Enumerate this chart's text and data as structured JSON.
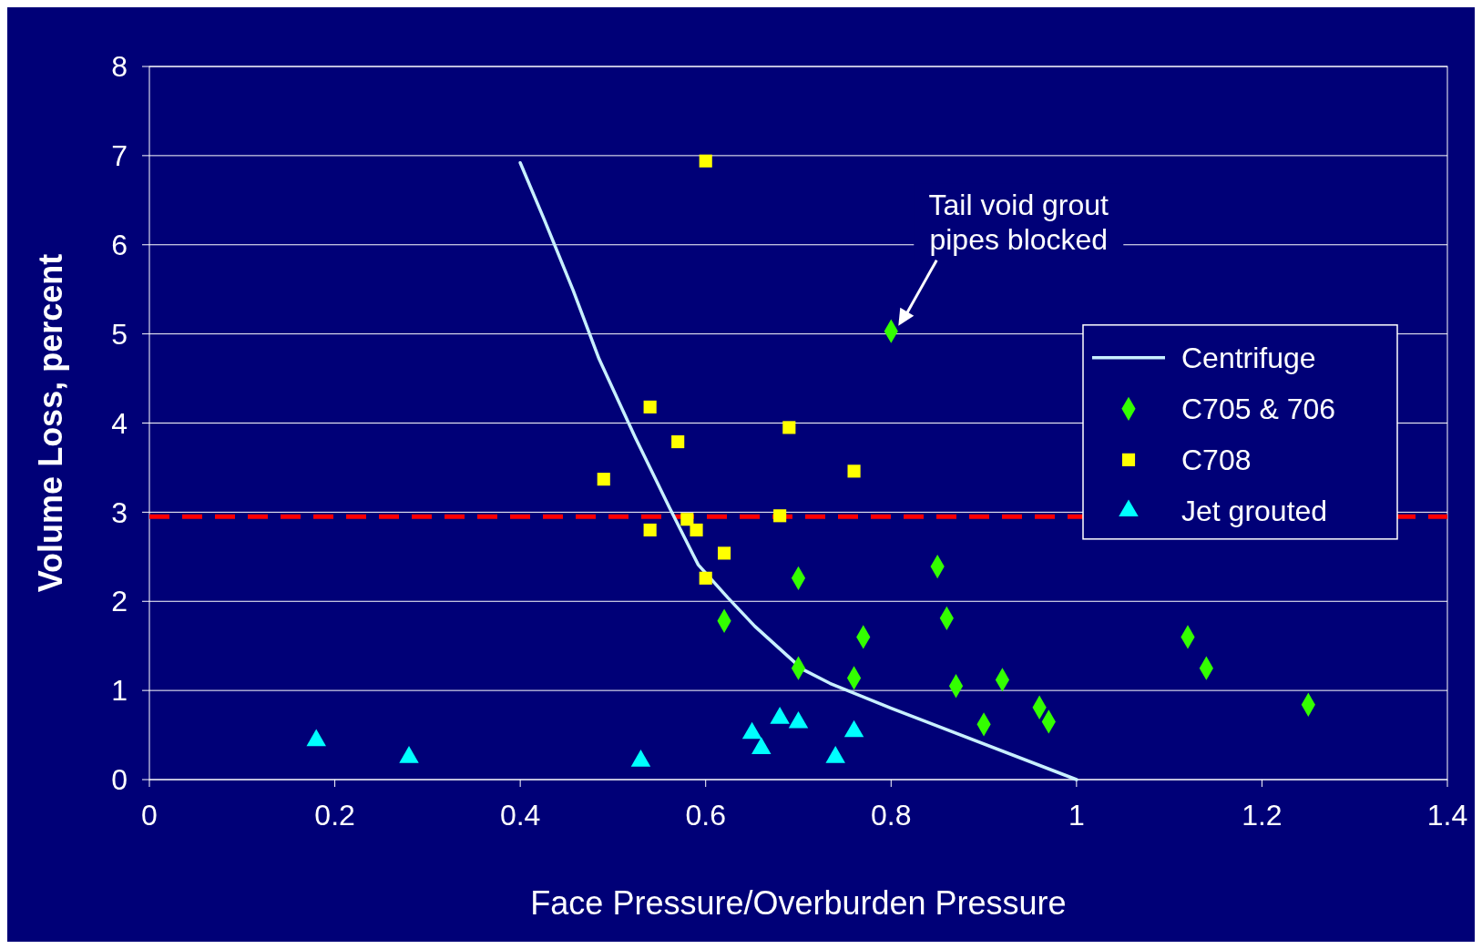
{
  "chart_data": {
    "type": "scatter",
    "xlabel": "Face Pressure/Overburden Pressure",
    "ylabel": "Volume Loss, percent",
    "xlim": [
      0,
      1.4
    ],
    "xticks": [
      0,
      0.2,
      0.4,
      0.6,
      0.8,
      1,
      1.2,
      1.4
    ],
    "ylim": [
      0,
      8
    ],
    "yticks": [
      0,
      1,
      2,
      3,
      4,
      5,
      6,
      7,
      8
    ],
    "grid": "y",
    "legend": "right",
    "series": [
      {
        "name": "Centrifuge",
        "type": "line",
        "color": "#c8f0ff",
        "marker": "none",
        "line_style": "solid",
        "x": [
          0.4,
          0.426,
          0.457,
          0.485,
          0.524,
          0.561,
          0.592,
          0.624,
          0.653,
          0.704,
          0.734,
          0.8,
          1.0
        ],
        "values": [
          6.92,
          6.28,
          5.49,
          4.72,
          3.84,
          3.05,
          2.41,
          2.04,
          1.72,
          1.24,
          1.08,
          0.8,
          0
        ]
      },
      {
        "name": "C705 & 706",
        "color": "#33ff00",
        "marker": "diamond",
        "x": [
          0.8,
          0.85,
          0.86,
          0.7,
          0.62,
          0.77,
          0.7,
          0.76,
          0.87,
          0.92,
          0.9,
          0.96,
          0.97,
          1.12,
          1.14,
          1.25
        ],
        "values": [
          5.03,
          2.39,
          1.81,
          2.26,
          1.78,
          1.6,
          1.25,
          1.14,
          1.05,
          1.12,
          0.62,
          0.81,
          0.65,
          1.6,
          1.25,
          0.84
        ]
      },
      {
        "name": "C708",
        "color": "#ffff00",
        "marker": "square",
        "x": [
          0.6,
          0.54,
          0.57,
          0.69,
          0.76,
          0.49,
          0.54,
          0.58,
          0.59,
          0.68,
          0.62,
          0.6
        ],
        "values": [
          6.94,
          4.18,
          3.79,
          3.95,
          3.46,
          3.37,
          2.8,
          2.92,
          2.8,
          2.96,
          2.54,
          2.26
        ]
      },
      {
        "name": "Jet grouted",
        "color": "#00ffff",
        "marker": "triangle",
        "x": [
          0.18,
          0.28,
          0.53,
          0.65,
          0.66,
          0.68,
          0.7,
          0.74,
          0.76
        ],
        "values": [
          0.44,
          0.25,
          0.21,
          0.52,
          0.35,
          0.69,
          0.64,
          0.25,
          0.54
        ]
      }
    ],
    "ref_lines": [
      {
        "axis": "y",
        "value": 2.95,
        "color": "#ff0000",
        "line_style": "dashed"
      }
    ],
    "annotations": [
      {
        "text": "Tail void grout pipes blocked",
        "x": 0.8,
        "y": 5.03
      }
    ]
  }
}
